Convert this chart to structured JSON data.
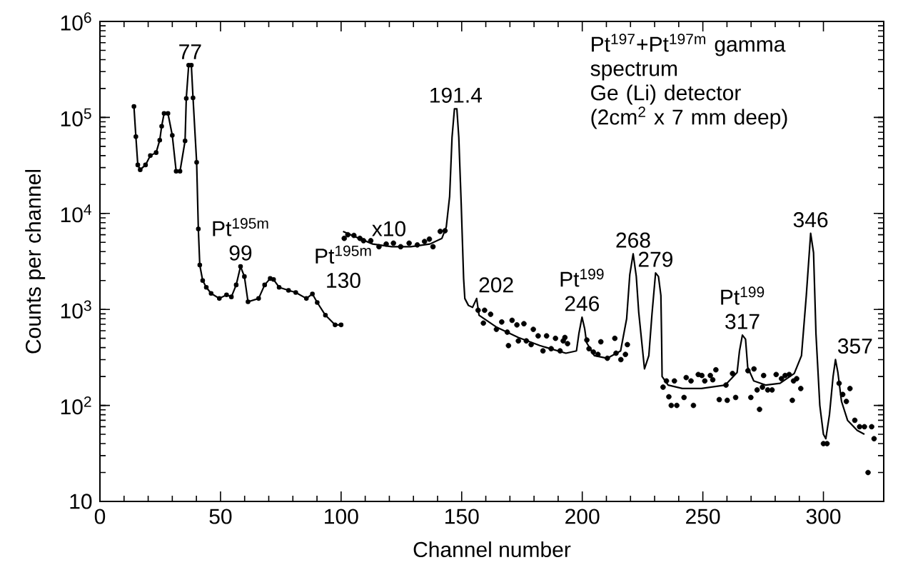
{
  "chart_data": {
    "type": "line",
    "title": "Pt$^{197}$+Pt$^{197m}$ gamma spectrum",
    "subtitle": "Ge (Li) detector (2cm$^{2}$ x 7 mm deep)",
    "xlabel": "Channel number",
    "ylabel": "Counts per channel",
    "log": "y",
    "grid": false,
    "xlim": [
      0,
      325
    ],
    "ylim": [
      10,
      1000000
    ],
    "xticks": [
      0,
      50,
      100,
      150,
      200,
      250,
      300
    ],
    "yticks": [
      {
        "value": 10,
        "label": "10"
      },
      {
        "value": 100,
        "label": "10$^{2}$"
      },
      {
        "value": 1000,
        "label": "10$^{3}$"
      },
      {
        "value": 10000,
        "label": "10$^{4}$"
      },
      {
        "value": 100000,
        "label": "10$^{5}$"
      },
      {
        "value": 1000000,
        "label": "10$^{6}$"
      }
    ],
    "series": [
      {
        "type": "line",
        "color": "#000000",
        "marker": "circle",
        "line_style": "solid",
        "x": [
          14.1,
          14.9,
          15.7,
          16.7,
          18.9,
          20.9,
          23.3,
          24.8,
          25.6,
          26.6,
          28.2,
          30.0,
          31.6,
          33.2,
          35.3,
          35.8,
          36.8,
          37.9,
          38.6,
          40.1,
          40.8,
          41.4,
          42.6,
          44.1,
          46.1,
          49.5,
          52.5,
          54.5,
          56.5,
          58.3,
          59.9,
          61.4,
          65.8,
          68.3,
          70.6,
          72.0,
          74.3,
          78.2,
          81.2,
          85.6,
          88.1,
          90.1,
          93.5,
          97.5,
          100
        ],
        "values": [
          130000,
          63000,
          32000,
          28500,
          32000,
          40000,
          43000,
          58000,
          81000,
          110000,
          110000,
          65000,
          27500,
          27500,
          57000,
          158000,
          350000,
          350000,
          160000,
          34000,
          6900,
          2900,
          2000,
          1700,
          1470,
          1300,
          1420,
          1350,
          1800,
          2800,
          2200,
          1200,
          1300,
          1800,
          2100,
          2050,
          1700,
          1580,
          1500,
          1300,
          1450,
          1180,
          870,
          690,
          690
        ]
      },
      {
        "type": "line",
        "color": "#000000",
        "marker": "none",
        "line_style": "solid",
        "x": [
          100.8,
          105.2,
          113.1,
          121,
          128.9,
          136.8,
          141.8,
          143.6,
          145,
          146,
          147,
          148,
          148.8,
          149.8,
          150.8,
          151.3,
          152.8,
          154.5,
          156.2,
          157.2,
          164.6,
          173.5,
          182.4,
          193.2,
          197.6,
          198.6,
          199.9,
          201.0,
          201.8,
          205,
          210.4,
          215.9,
          218.4,
          219.7,
          221.1,
          222.4,
          223.4,
          225.8,
          227.6,
          228.9,
          230.4,
          231.6,
          232.6,
          232.9,
          233.1,
          235.6,
          241.5,
          249.4,
          259.3,
          264.2,
          265.2,
          266.4,
          267.7,
          268.6,
          271.1,
          276,
          282,
          287.9,
          290.9,
          292.9,
          294.7,
          295.9,
          296.9,
          298.5,
          300,
          301,
          302.5,
          304,
          305,
          306,
          307.5,
          310,
          314,
          317
        ],
        "values": [
          6500,
          5800,
          4800,
          4500,
          4500,
          4800,
          5500,
          7200,
          15000,
          62000,
          123000,
          123000,
          62000,
          12600,
          2100,
          1300,
          1100,
          1050,
          1300,
          870,
          650,
          510,
          420,
          350,
          370,
          560,
          830,
          630,
          450,
          330,
          310,
          370,
          800,
          2300,
          3800,
          2200,
          940,
          240,
          330,
          890,
          2400,
          2200,
          1400,
          490,
          200,
          163,
          150,
          150,
          163,
          220,
          370,
          540,
          490,
          250,
          180,
          163,
          170,
          215,
          330,
          1400,
          6200,
          3900,
          560,
          100,
          50,
          45,
          80,
          200,
          300,
          220,
          110,
          70,
          55,
          50
        ]
      },
      {
        "type": "scatter",
        "color": "#000000",
        "marker": "circle",
        "x": [
          101.3,
          102.8,
          105.3,
          107.8,
          109.3,
          112.3,
          115.7,
          118.7,
          121.7,
          124.7,
          128.2,
          131.6,
          134.6,
          136.6,
          138.1,
          141.1,
          143.1,
          156.8,
          159.5,
          162.0,
          159.0,
          164.4,
          166.6,
          168.9,
          170.9,
          172.9,
          175.8,
          169.4,
          173.5,
          176.8,
          178.8,
          179.7,
          181.7,
          185.2,
          183.7,
          187.1,
          188.9,
          190.8,
          192.8,
          192.1,
          193.9,
          201.9,
          202.8,
          204.6,
          207.7,
          206.5,
          210.4,
          213.5,
          214.0,
          216.0,
          217.9,
          218.7,
          233.5,
          234.9,
          235.9,
          236.9,
          238.2,
          239.2,
          242.2,
          243.1,
          245.1,
          246.1,
          248.1,
          249.6,
          250.8,
          253.1,
          254.1,
          255.4,
          256.8,
          260.1,
          259.6,
          263.6,
          262.3,
          268.7,
          269.9,
          271.2,
          272.5,
          273.5,
          274.7,
          276.9,
          278.7,
          275.2,
          280.4,
          282.6,
          284.1,
          285.8,
          287.1,
          287.6,
          288.9,
          290.6,
          300,
          301.5,
          306.5,
          308,
          309.5,
          311,
          313,
          315,
          317,
          318.5,
          320,
          321
        ],
        "values": [
          5500,
          6000,
          5900,
          5500,
          5200,
          5200,
          4500,
          4800,
          4900,
          4500,
          4900,
          4700,
          5100,
          5400,
          4500,
          6500,
          6600,
          980,
          980,
          890,
          720,
          620,
          740,
          580,
          770,
          690,
          710,
          420,
          470,
          470,
          430,
          620,
          530,
          530,
          370,
          390,
          500,
          370,
          510,
          470,
          440,
          480,
          390,
          360,
          460,
          340,
          310,
          500,
          350,
          300,
          340,
          430,
          155,
          180,
          123,
          100,
          180,
          100,
          121,
          195,
          180,
          100,
          210,
          205,
          180,
          205,
          185,
          235,
          115,
          113,
          163,
          121,
          215,
          230,
          121,
          240,
          145,
          91,
          155,
          145,
          145,
          205,
          210,
          190,
          205,
          210,
          113,
          180,
          190,
          150,
          40,
          40,
          170,
          130,
          110,
          150,
          70,
          60,
          60,
          20,
          60,
          45
        ]
      }
    ],
    "annotations": [
      {
        "text": "77",
        "x": 37.4,
        "y": 350000
      },
      {
        "text": "Pt$^{195m}$",
        "x": 58.3,
        "y": 2800
      },
      {
        "text": "99",
        "x": 58.3,
        "y": 2800
      },
      {
        "text": "Pt$^{195m}$",
        "x": 88.1,
        "y": 1450
      },
      {
        "text": "130",
        "x": 88.1,
        "y": 1450
      },
      {
        "text": "x10",
        "x": 112,
        "y": 5000
      },
      {
        "text": "191.4",
        "x": 147.5,
        "y": 123000
      },
      {
        "text": "202",
        "x": 156.2,
        "y": 1300
      },
      {
        "text": "Pt$^{199}$",
        "x": 199.9,
        "y": 830
      },
      {
        "text": "246",
        "x": 199.9,
        "y": 830
      },
      {
        "text": "268",
        "x": 221.1,
        "y": 3800
      },
      {
        "text": "279",
        "x": 230.4,
        "y": 2400
      },
      {
        "text": "Pt$^{199}$",
        "x": 266.4,
        "y": 540
      },
      {
        "text": "317",
        "x": 266.4,
        "y": 540
      },
      {
        "text": "346",
        "x": 294.7,
        "y": 6200
      },
      {
        "text": "357",
        "x": 305,
        "y": 300
      }
    ]
  }
}
